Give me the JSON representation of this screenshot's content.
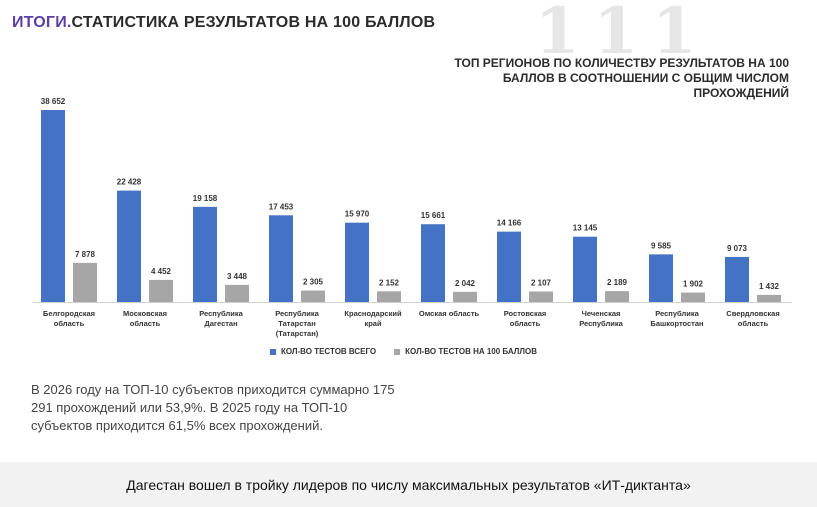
{
  "header": {
    "accent": "ИТОГИ.",
    "title": "СТАТИСТИКА РЕЗУЛЬТАТОВ НА 100 БАЛЛОВ",
    "watermark": "111"
  },
  "note": "В 2026 году на ТОП-10 субъектов приходится суммарно 175 291 прохождений или 53,9%. В 2025 году на ТОП-10 субъектов приходится 61,5% всех прохождений.",
  "caption": "Дагестан вошел в тройку лидеров по числу максимальных результатов «ИТ-диктанта»",
  "colors": {
    "series1": "#4472c4",
    "series2": "#a6a6a6",
    "accent": "#5b3fa8"
  },
  "chart_data": {
    "type": "bar",
    "title": "ТОП РЕГИОНОВ ПО КОЛИЧЕСТВУ РЕЗУЛЬТАТОВ НА 100 БАЛЛОВ В СООТНОШЕНИИ С ОБЩИМ ЧИСЛОМ ПРОХОЖДЕНИЙ",
    "categories": [
      [
        "Белгородская",
        "область"
      ],
      [
        "Московская",
        "область"
      ],
      [
        "Республика",
        "Дагестан"
      ],
      [
        "Республика",
        "Татарстан",
        "(Татарстан)"
      ],
      [
        "Краснодарский",
        "край"
      ],
      [
        "Омская область"
      ],
      [
        "Ростовская",
        "область"
      ],
      [
        "Чеченская",
        "Республика"
      ],
      [
        "Республика",
        "Башкортостан"
      ],
      [
        "Свердловская",
        "область"
      ]
    ],
    "series": [
      {
        "name": "КОЛ-ВО ТЕСТОВ ВСЕГО",
        "values": [
          38652,
          22428,
          19158,
          17453,
          15970,
          15661,
          14166,
          13145,
          9585,
          9073
        ],
        "labels": [
          "38 652",
          "22 428",
          "19 158",
          "17 453",
          "15 970",
          "15 661",
          "14 166",
          "13 145",
          "9 585",
          "9 073"
        ]
      },
      {
        "name": "КОЛ-ВО ТЕСТОВ НА 100 БАЛЛОВ",
        "values": [
          7878,
          4452,
          3448,
          2305,
          2152,
          2042,
          2107,
          2189,
          1902,
          1432
        ],
        "labels": [
          "7 878",
          "4 452",
          "3 448",
          "2 305",
          "2 152",
          "2 042",
          "2 107",
          "2 189",
          "1 902",
          "1 432"
        ]
      }
    ],
    "ylim": [
      0,
      38652
    ],
    "legend": "bottom"
  }
}
